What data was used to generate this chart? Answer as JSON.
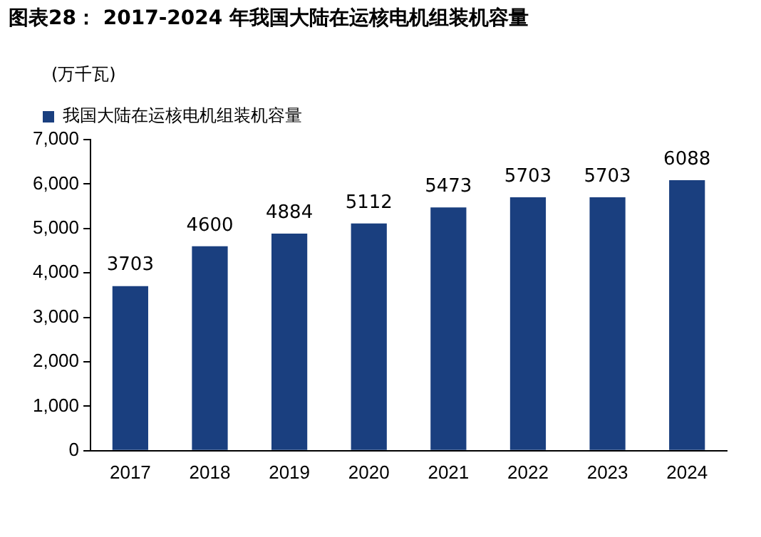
{
  "chart_data": {
    "type": "bar",
    "title": "图表28： 2017-2024 年我国大陆在运核电机组装机容量",
    "ylabel": "(万千瓦)",
    "categories": [
      "2017",
      "2018",
      "2019",
      "2020",
      "2021",
      "2022",
      "2023",
      "2024"
    ],
    "series": [
      {
        "name": "我国大陆在运核电机组装机容量",
        "color": "#1a3f7f",
        "values": [
          3703,
          4600,
          4884,
          5112,
          5473,
          5703,
          5703,
          6088
        ]
      }
    ],
    "ylim": [
      0,
      7000
    ],
    "yticks": [
      {
        "value": 0,
        "label": "0"
      },
      {
        "value": 1000,
        "label": "1,000"
      },
      {
        "value": 2000,
        "label": "2,000"
      },
      {
        "value": 3000,
        "label": "3,000"
      },
      {
        "value": 4000,
        "label": "4,000"
      },
      {
        "value": 5000,
        "label": "5,000"
      },
      {
        "value": 6000,
        "label": "6,000"
      },
      {
        "value": 7000,
        "label": "7,000"
      }
    ],
    "grid": false,
    "legend": "top left",
    "data_labels": true
  }
}
